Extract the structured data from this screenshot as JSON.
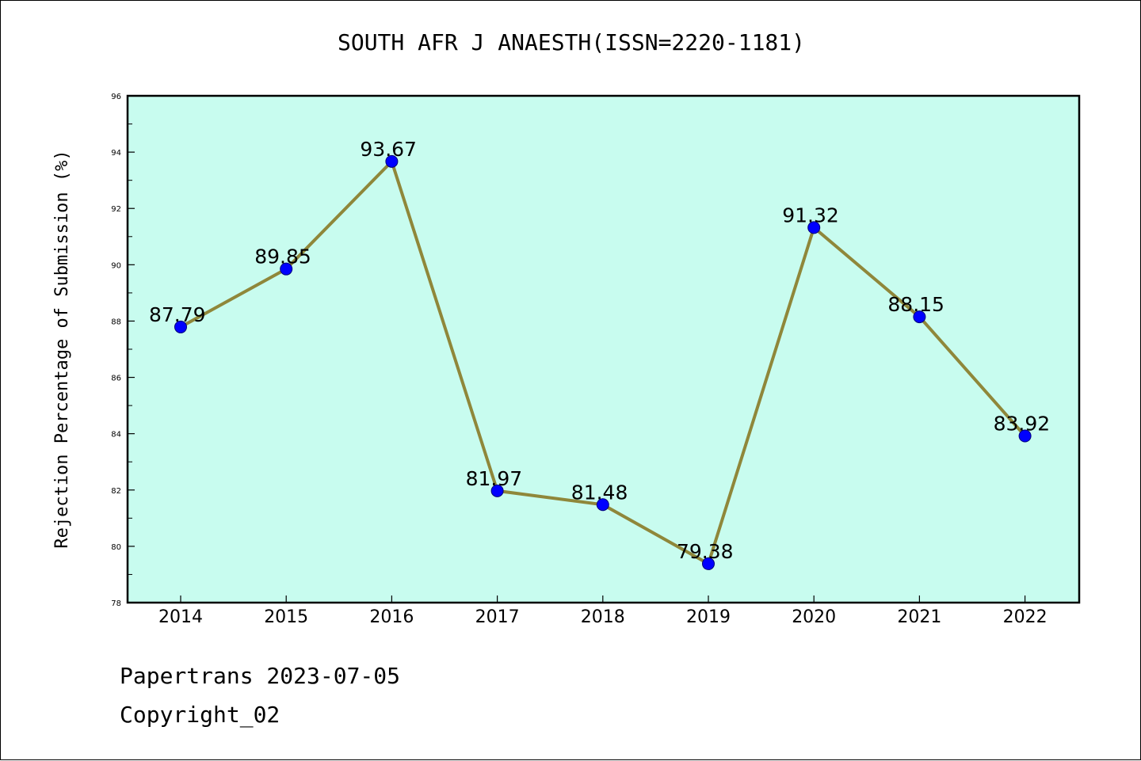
{
  "chart_data": {
    "type": "line",
    "title": "SOUTH AFR J ANAESTH(ISSN=2220-1181)",
    "xlabel": "",
    "ylabel": "Rejection Percentage of Submission (%)",
    "categories": [
      "2014",
      "2015",
      "2016",
      "2017",
      "2018",
      "2019",
      "2020",
      "2021",
      "2022"
    ],
    "series": [
      {
        "values": [
          87.79,
          89.85,
          93.67,
          81.97,
          81.48,
          79.38,
          91.32,
          88.15,
          83.92
        ],
        "labels": [
          "87.79",
          "89.85",
          "93.67",
          "81.97",
          "81.48",
          "79.38",
          "91.32",
          "88.15",
          "83.92"
        ]
      }
    ],
    "ylim": [
      78,
      96
    ],
    "yticks": [
      78,
      80,
      82,
      84,
      86,
      88,
      90,
      92,
      94,
      96
    ],
    "grid": false,
    "legend": "none"
  },
  "footer": {
    "date": "Papertrans 2023-07-05",
    "copyright": "Copyright_02"
  },
  "colors": {
    "plot_background": "#c8fcef",
    "line": "#8f873a",
    "marker": "#0000ff",
    "axis": "#000000"
  }
}
